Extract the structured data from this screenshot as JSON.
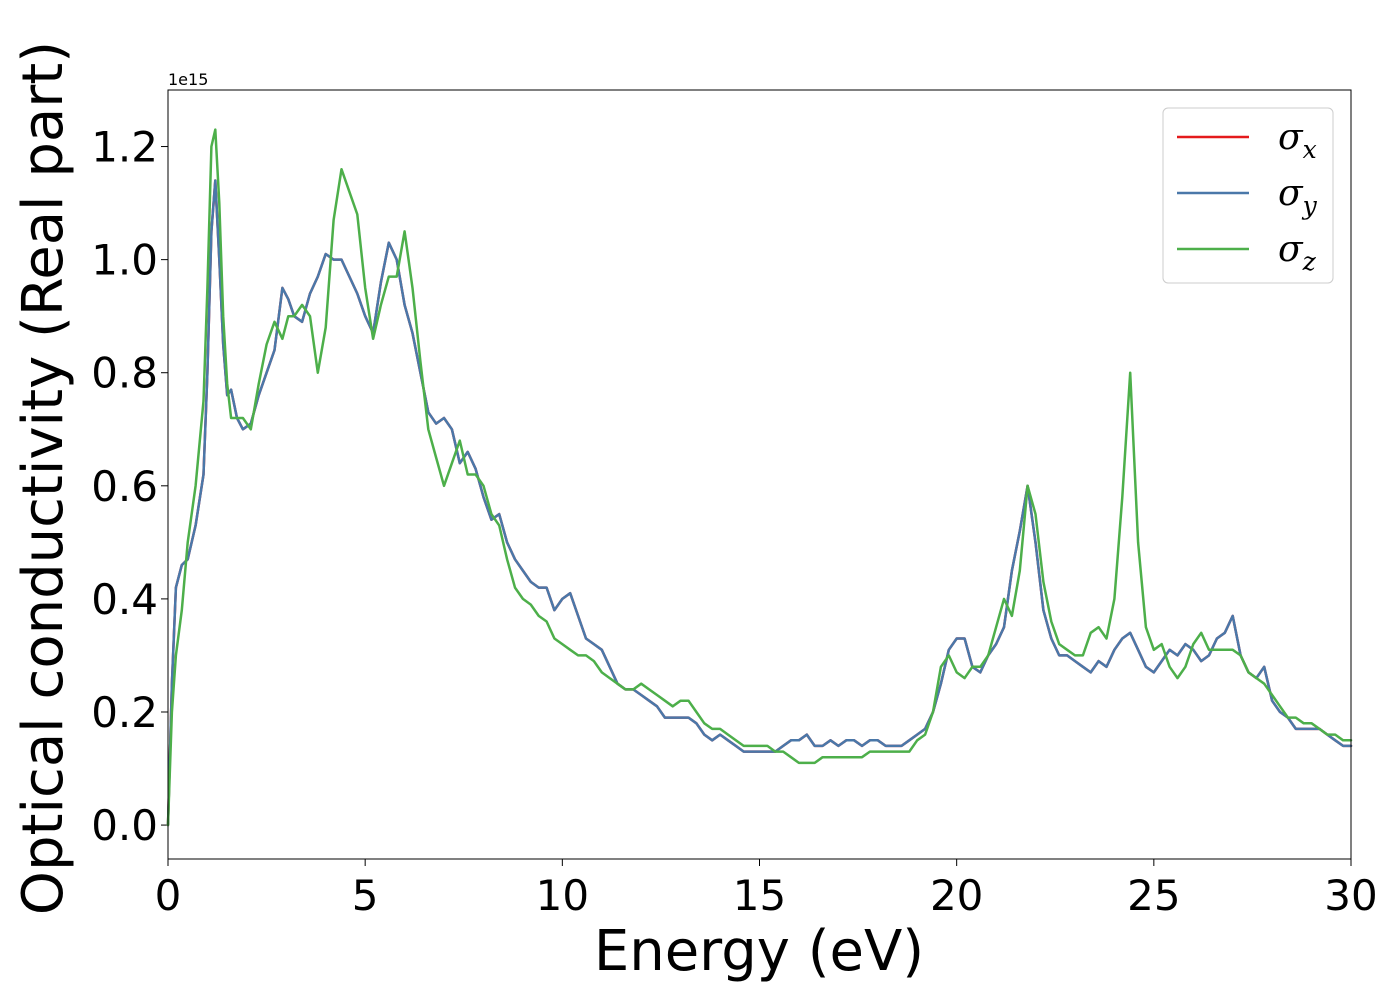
{
  "chart_data": {
    "type": "line",
    "title": "",
    "xlabel": "Energy (eV)",
    "ylabel": "Optical conductivity (Real part)",
    "y_offset_label": "1e15",
    "y_scale": 1000000000000000.0,
    "xlim": [
      0,
      30
    ],
    "ylim": [
      -0.06,
      1.3
    ],
    "xticks": [
      0,
      5,
      10,
      15,
      20,
      25,
      30
    ],
    "xtick_labels": [
      "0",
      "5",
      "10",
      "15",
      "20",
      "25",
      "30"
    ],
    "yticks": [
      0.0,
      0.2,
      0.4,
      0.6,
      0.8,
      1.0,
      1.2
    ],
    "ytick_labels": [
      "0.0",
      "0.2",
      "0.4",
      "0.6",
      "0.8",
      "1.0",
      "1.2"
    ],
    "grid": false,
    "legend_position": "top-right",
    "series": [
      {
        "name": "σx",
        "legend_symbol": "σ",
        "legend_sub": "x",
        "color": "#e41a1c",
        "x": [
          0,
          0.1,
          0.2,
          0.35,
          0.5,
          0.7,
          0.9,
          1.0,
          1.1,
          1.2,
          1.3,
          1.4,
          1.5,
          1.6,
          1.75,
          1.9,
          2.1,
          2.3,
          2.5,
          2.7,
          2.9,
          3.05,
          3.2,
          3.4,
          3.6,
          3.8,
          4.0,
          4.2,
          4.4,
          4.6,
          4.8,
          5.0,
          5.2,
          5.4,
          5.6,
          5.8,
          6.0,
          6.2,
          6.4,
          6.6,
          6.8,
          7.0,
          7.2,
          7.4,
          7.6,
          7.8,
          8.0,
          8.2,
          8.4,
          8.6,
          8.8,
          9.0,
          9.2,
          9.4,
          9.6,
          9.8,
          10.0,
          10.2,
          10.4,
          10.6,
          10.8,
          11.0,
          11.2,
          11.4,
          11.6,
          11.8,
          12.0,
          12.2,
          12.4,
          12.6,
          12.8,
          13.0,
          13.2,
          13.4,
          13.6,
          13.8,
          14.0,
          14.2,
          14.4,
          14.6,
          14.8,
          15.0,
          15.2,
          15.4,
          15.6,
          15.8,
          16.0,
          16.2,
          16.4,
          16.6,
          16.8,
          17.0,
          17.2,
          17.4,
          17.6,
          17.8,
          18.0,
          18.2,
          18.4,
          18.6,
          18.8,
          19.0,
          19.2,
          19.4,
          19.6,
          19.8,
          20.0,
          20.2,
          20.4,
          20.6,
          20.8,
          21.0,
          21.2,
          21.4,
          21.6,
          21.8,
          22.0,
          22.2,
          22.4,
          22.6,
          22.8,
          23.0,
          23.2,
          23.4,
          23.6,
          23.8,
          24.0,
          24.2,
          24.4,
          24.6,
          24.8,
          25.0,
          25.2,
          25.4,
          25.6,
          25.8,
          26.0,
          26.2,
          26.4,
          26.6,
          26.8,
          27.0,
          27.2,
          27.4,
          27.6,
          27.8,
          28.0,
          28.2,
          28.4,
          28.6,
          28.8,
          29.0,
          29.2,
          29.4,
          29.6,
          29.8,
          30.0
        ],
        "y": [
          0,
          0.25,
          0.42,
          0.46,
          0.47,
          0.53,
          0.62,
          0.8,
          1.05,
          1.14,
          1.0,
          0.85,
          0.76,
          0.77,
          0.72,
          0.7,
          0.71,
          0.76,
          0.8,
          0.84,
          0.95,
          0.93,
          0.9,
          0.89,
          0.94,
          0.97,
          1.01,
          1.0,
          1.0,
          0.97,
          0.94,
          0.9,
          0.87,
          0.96,
          1.03,
          1.0,
          0.92,
          0.87,
          0.8,
          0.73,
          0.71,
          0.72,
          0.7,
          0.64,
          0.66,
          0.63,
          0.58,
          0.54,
          0.55,
          0.5,
          0.47,
          0.45,
          0.43,
          0.42,
          0.42,
          0.38,
          0.4,
          0.41,
          0.37,
          0.33,
          0.32,
          0.31,
          0.28,
          0.25,
          0.24,
          0.24,
          0.23,
          0.22,
          0.21,
          0.19,
          0.19,
          0.19,
          0.19,
          0.18,
          0.16,
          0.15,
          0.16,
          0.15,
          0.14,
          0.13,
          0.13,
          0.13,
          0.13,
          0.13,
          0.14,
          0.15,
          0.15,
          0.16,
          0.14,
          0.14,
          0.15,
          0.14,
          0.15,
          0.15,
          0.14,
          0.15,
          0.15,
          0.14,
          0.14,
          0.14,
          0.15,
          0.16,
          0.17,
          0.2,
          0.25,
          0.31,
          0.33,
          0.33,
          0.28,
          0.27,
          0.3,
          0.32,
          0.35,
          0.45,
          0.52,
          0.6,
          0.5,
          0.38,
          0.33,
          0.3,
          0.3,
          0.29,
          0.28,
          0.27,
          0.29,
          0.28,
          0.31,
          0.33,
          0.34,
          0.31,
          0.28,
          0.27,
          0.29,
          0.31,
          0.3,
          0.32,
          0.31,
          0.29,
          0.3,
          0.33,
          0.34,
          0.37,
          0.3,
          0.27,
          0.26,
          0.28,
          0.22,
          0.2,
          0.19,
          0.17,
          0.17,
          0.17,
          0.17,
          0.16,
          0.15,
          0.14,
          0.14
        ]
      },
      {
        "name": "σy",
        "legend_symbol": "σ",
        "legend_sub": "y",
        "color": "#4a78a9",
        "x": [
          0,
          0.1,
          0.2,
          0.35,
          0.5,
          0.7,
          0.9,
          1.0,
          1.1,
          1.2,
          1.3,
          1.4,
          1.5,
          1.6,
          1.75,
          1.9,
          2.1,
          2.3,
          2.5,
          2.7,
          2.9,
          3.05,
          3.2,
          3.4,
          3.6,
          3.8,
          4.0,
          4.2,
          4.4,
          4.6,
          4.8,
          5.0,
          5.2,
          5.4,
          5.6,
          5.8,
          6.0,
          6.2,
          6.4,
          6.6,
          6.8,
          7.0,
          7.2,
          7.4,
          7.6,
          7.8,
          8.0,
          8.2,
          8.4,
          8.6,
          8.8,
          9.0,
          9.2,
          9.4,
          9.6,
          9.8,
          10.0,
          10.2,
          10.4,
          10.6,
          10.8,
          11.0,
          11.2,
          11.4,
          11.6,
          11.8,
          12.0,
          12.2,
          12.4,
          12.6,
          12.8,
          13.0,
          13.2,
          13.4,
          13.6,
          13.8,
          14.0,
          14.2,
          14.4,
          14.6,
          14.8,
          15.0,
          15.2,
          15.4,
          15.6,
          15.8,
          16.0,
          16.2,
          16.4,
          16.6,
          16.8,
          17.0,
          17.2,
          17.4,
          17.6,
          17.8,
          18.0,
          18.2,
          18.4,
          18.6,
          18.8,
          19.0,
          19.2,
          19.4,
          19.6,
          19.8,
          20.0,
          20.2,
          20.4,
          20.6,
          20.8,
          21.0,
          21.2,
          21.4,
          21.6,
          21.8,
          22.0,
          22.2,
          22.4,
          22.6,
          22.8,
          23.0,
          23.2,
          23.4,
          23.6,
          23.8,
          24.0,
          24.2,
          24.4,
          24.6,
          24.8,
          25.0,
          25.2,
          25.4,
          25.6,
          25.8,
          26.0,
          26.2,
          26.4,
          26.6,
          26.8,
          27.0,
          27.2,
          27.4,
          27.6,
          27.8,
          28.0,
          28.2,
          28.4,
          28.6,
          28.8,
          29.0,
          29.2,
          29.4,
          29.6,
          29.8,
          30.0
        ],
        "y": [
          0,
          0.25,
          0.42,
          0.46,
          0.47,
          0.53,
          0.62,
          0.8,
          1.05,
          1.14,
          1.0,
          0.85,
          0.76,
          0.77,
          0.72,
          0.7,
          0.71,
          0.76,
          0.8,
          0.84,
          0.95,
          0.93,
          0.9,
          0.89,
          0.94,
          0.97,
          1.01,
          1.0,
          1.0,
          0.97,
          0.94,
          0.9,
          0.87,
          0.96,
          1.03,
          1.0,
          0.92,
          0.87,
          0.8,
          0.73,
          0.71,
          0.72,
          0.7,
          0.64,
          0.66,
          0.63,
          0.58,
          0.54,
          0.55,
          0.5,
          0.47,
          0.45,
          0.43,
          0.42,
          0.42,
          0.38,
          0.4,
          0.41,
          0.37,
          0.33,
          0.32,
          0.31,
          0.28,
          0.25,
          0.24,
          0.24,
          0.23,
          0.22,
          0.21,
          0.19,
          0.19,
          0.19,
          0.19,
          0.18,
          0.16,
          0.15,
          0.16,
          0.15,
          0.14,
          0.13,
          0.13,
          0.13,
          0.13,
          0.13,
          0.14,
          0.15,
          0.15,
          0.16,
          0.14,
          0.14,
          0.15,
          0.14,
          0.15,
          0.15,
          0.14,
          0.15,
          0.15,
          0.14,
          0.14,
          0.14,
          0.15,
          0.16,
          0.17,
          0.2,
          0.25,
          0.31,
          0.33,
          0.33,
          0.28,
          0.27,
          0.3,
          0.32,
          0.35,
          0.45,
          0.52,
          0.6,
          0.5,
          0.38,
          0.33,
          0.3,
          0.3,
          0.29,
          0.28,
          0.27,
          0.29,
          0.28,
          0.31,
          0.33,
          0.34,
          0.31,
          0.28,
          0.27,
          0.29,
          0.31,
          0.3,
          0.32,
          0.31,
          0.29,
          0.3,
          0.33,
          0.34,
          0.37,
          0.3,
          0.27,
          0.26,
          0.28,
          0.22,
          0.2,
          0.19,
          0.17,
          0.17,
          0.17,
          0.17,
          0.16,
          0.15,
          0.14,
          0.14
        ]
      },
      {
        "name": "σz",
        "legend_symbol": "σ",
        "legend_sub": "z",
        "color": "#4daf4a",
        "x": [
          0,
          0.1,
          0.2,
          0.35,
          0.5,
          0.7,
          0.9,
          1.0,
          1.1,
          1.2,
          1.3,
          1.4,
          1.5,
          1.6,
          1.75,
          1.9,
          2.1,
          2.3,
          2.5,
          2.7,
          2.9,
          3.05,
          3.2,
          3.4,
          3.6,
          3.8,
          4.0,
          4.2,
          4.4,
          4.6,
          4.8,
          5.0,
          5.2,
          5.4,
          5.6,
          5.8,
          6.0,
          6.2,
          6.4,
          6.6,
          6.8,
          7.0,
          7.2,
          7.4,
          7.6,
          7.8,
          8.0,
          8.2,
          8.4,
          8.6,
          8.8,
          9.0,
          9.2,
          9.4,
          9.6,
          9.8,
          10.0,
          10.2,
          10.4,
          10.6,
          10.8,
          11.0,
          11.2,
          11.4,
          11.6,
          11.8,
          12.0,
          12.2,
          12.4,
          12.6,
          12.8,
          13.0,
          13.2,
          13.4,
          13.6,
          13.8,
          14.0,
          14.2,
          14.4,
          14.6,
          14.8,
          15.0,
          15.2,
          15.4,
          15.6,
          15.8,
          16.0,
          16.2,
          16.4,
          16.6,
          16.8,
          17.0,
          17.2,
          17.4,
          17.6,
          17.8,
          18.0,
          18.2,
          18.4,
          18.6,
          18.8,
          19.0,
          19.2,
          19.4,
          19.6,
          19.8,
          20.0,
          20.2,
          20.4,
          20.6,
          20.8,
          21.0,
          21.2,
          21.4,
          21.6,
          21.8,
          22.0,
          22.2,
          22.4,
          22.6,
          22.8,
          23.0,
          23.2,
          23.4,
          23.6,
          23.8,
          24.0,
          24.2,
          24.4,
          24.6,
          24.8,
          25.0,
          25.2,
          25.4,
          25.6,
          25.8,
          26.0,
          26.2,
          26.4,
          26.6,
          26.8,
          27.0,
          27.2,
          27.4,
          27.6,
          27.8,
          28.0,
          28.2,
          28.4,
          28.6,
          28.8,
          29.0,
          29.2,
          29.4,
          29.6,
          29.8,
          30.0
        ],
        "y": [
          0,
          0.2,
          0.3,
          0.38,
          0.5,
          0.6,
          0.75,
          0.95,
          1.2,
          1.23,
          1.1,
          0.9,
          0.78,
          0.72,
          0.72,
          0.72,
          0.7,
          0.78,
          0.85,
          0.89,
          0.86,
          0.9,
          0.9,
          0.92,
          0.9,
          0.8,
          0.88,
          1.07,
          1.16,
          1.12,
          1.08,
          0.95,
          0.86,
          0.92,
          0.97,
          0.97,
          1.05,
          0.95,
          0.82,
          0.7,
          0.65,
          0.6,
          0.64,
          0.68,
          0.62,
          0.62,
          0.6,
          0.55,
          0.53,
          0.47,
          0.42,
          0.4,
          0.39,
          0.37,
          0.36,
          0.33,
          0.32,
          0.31,
          0.3,
          0.3,
          0.29,
          0.27,
          0.26,
          0.25,
          0.24,
          0.24,
          0.25,
          0.24,
          0.23,
          0.22,
          0.21,
          0.22,
          0.22,
          0.2,
          0.18,
          0.17,
          0.17,
          0.16,
          0.15,
          0.14,
          0.14,
          0.14,
          0.14,
          0.13,
          0.13,
          0.12,
          0.11,
          0.11,
          0.11,
          0.12,
          0.12,
          0.12,
          0.12,
          0.12,
          0.12,
          0.13,
          0.13,
          0.13,
          0.13,
          0.13,
          0.13,
          0.15,
          0.16,
          0.2,
          0.28,
          0.3,
          0.27,
          0.26,
          0.28,
          0.28,
          0.3,
          0.35,
          0.4,
          0.37,
          0.45,
          0.6,
          0.55,
          0.43,
          0.36,
          0.32,
          0.31,
          0.3,
          0.3,
          0.34,
          0.35,
          0.33,
          0.4,
          0.58,
          0.8,
          0.5,
          0.35,
          0.31,
          0.32,
          0.28,
          0.26,
          0.28,
          0.32,
          0.34,
          0.31,
          0.31,
          0.31,
          0.31,
          0.3,
          0.27,
          0.26,
          0.25,
          0.23,
          0.21,
          0.19,
          0.19,
          0.18,
          0.18,
          0.17,
          0.16,
          0.16,
          0.15,
          0.15
        ]
      }
    ]
  }
}
